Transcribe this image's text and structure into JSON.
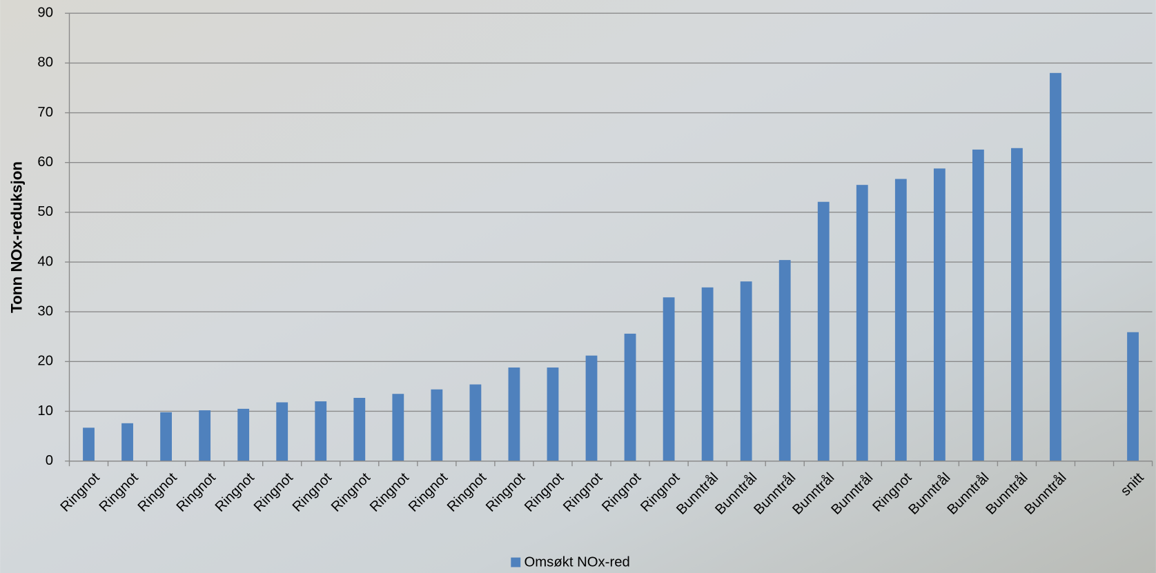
{
  "chart_data": {
    "type": "bar",
    "y_label": "Tonn NOx-reduksjon",
    "categories": [
      "Ringnot",
      "Ringnot",
      "Ringnot",
      "Ringnot",
      "Ringnot",
      "Ringnot",
      "Ringnot",
      "Ringnot",
      "Ringnot",
      "Ringnot",
      "Ringnot",
      "Ringnot",
      "Ringnot",
      "Ringnot",
      "Ringnot",
      "Ringnot",
      "Bunntrål",
      "Bunntrål",
      "Bunntrål",
      "Bunntrål",
      "Bunntrål",
      "Ringnot",
      "Bunntrål",
      "Bunntrål",
      "Bunntrål",
      "Bunntrål",
      null,
      "snitt"
    ],
    "series": [
      {
        "name": "Omsøkt NOx-red",
        "color": "#4f81bd",
        "values": [
          6.7,
          7.6,
          9.8,
          10.2,
          10.5,
          11.8,
          12.0,
          12.7,
          13.5,
          14.4,
          15.4,
          18.8,
          18.8,
          21.2,
          25.6,
          32.9,
          34.9,
          36.1,
          40.4,
          52.1,
          55.5,
          56.7,
          58.8,
          62.6,
          62.9,
          78.0,
          null,
          25.9
        ]
      }
    ],
    "ylim": [
      0,
      90
    ],
    "yticks": [
      0,
      10,
      20,
      30,
      40,
      50,
      60,
      70,
      80,
      90
    ],
    "grid": true,
    "legend": "bottom"
  }
}
